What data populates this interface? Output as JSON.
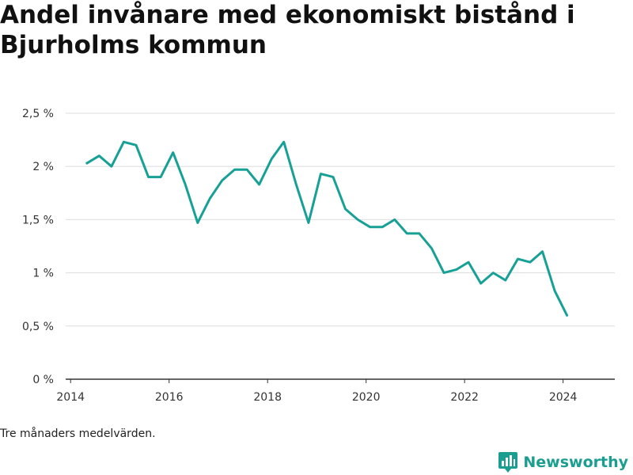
{
  "title": "Andel invånare med ekonomiskt bistånd i Bjurholms kommun",
  "note": "Tre månaders medelvärden.",
  "brand": {
    "name": "Newsworthy",
    "icon": "newsworthy-logo-icon",
    "color": "#1a9e8f"
  },
  "chart_data": {
    "type": "line",
    "title": "Andel invånare med ekonomiskt bistånd i Bjurholms kommun",
    "xlabel": "",
    "ylabel": "",
    "grid": true,
    "legend": "none",
    "color": "#17a096",
    "xlim": [
      2013.9,
      2025.05
    ],
    "ylim": [
      0,
      2.5
    ],
    "x_ticks": [
      2014,
      2016,
      2018,
      2020,
      2022,
      2024
    ],
    "y_ticks": [
      0,
      0.5,
      1,
      1.5,
      2,
      2.5
    ],
    "y_tick_labels": [
      "0 %",
      "0,5 %",
      "1 %",
      "1,5 %",
      "2 %",
      "2,5 %"
    ],
    "series": [
      {
        "x": [
          2014.33,
          2014.58,
          2014.83,
          2015.08,
          2015.33,
          2015.58,
          2015.83,
          2016.08,
          2016.33,
          2016.58,
          2016.83,
          2017.08,
          2017.33,
          2017.58,
          2017.83,
          2018.08,
          2018.33,
          2018.58,
          2018.83,
          2019.08,
          2019.33,
          2019.58,
          2019.83,
          2020.08,
          2020.33,
          2020.58,
          2020.83,
          2021.08,
          2021.33,
          2021.58,
          2021.83,
          2022.08,
          2022.33,
          2022.58,
          2022.83,
          2023.08,
          2023.33,
          2023.58,
          2023.83,
          2024.08
        ],
        "values": [
          2.03,
          2.1,
          2.0,
          2.23,
          2.2,
          1.9,
          1.9,
          2.13,
          1.83,
          1.47,
          1.7,
          1.87,
          1.97,
          1.97,
          1.83,
          2.07,
          2.23,
          1.83,
          1.47,
          1.93,
          1.9,
          1.6,
          1.5,
          1.43,
          1.43,
          1.5,
          1.37,
          1.37,
          1.23,
          1.0,
          1.03,
          1.1,
          0.9,
          1.0,
          0.93,
          1.13,
          1.1,
          1.2,
          0.83,
          0.6
        ]
      }
    ]
  }
}
